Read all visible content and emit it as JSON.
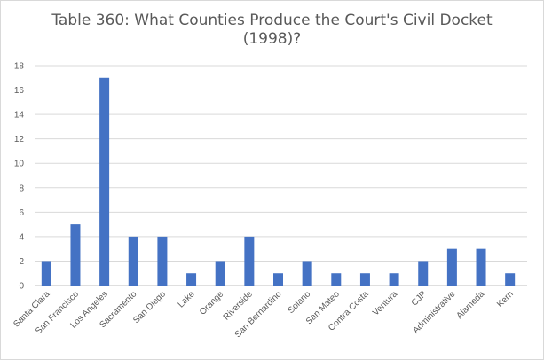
{
  "chart_data": {
    "type": "bar",
    "title_line1": "Table 360: What Counties Produce the Court's Civil Docket",
    "title_line2": "(1998)?",
    "categories": [
      "Santa Clara",
      "San Francisco",
      "Los Angeles",
      "Sacramento",
      "San Diego",
      "Lake",
      "Orange",
      "Riverside",
      "San Bernardino",
      "Solano",
      "San Mateo",
      "Contra Costa",
      "Ventura",
      "CJP",
      "Administrative",
      "Alameda",
      "Kern"
    ],
    "values": [
      2,
      5,
      17,
      4,
      4,
      1,
      2,
      4,
      1,
      2,
      1,
      1,
      1,
      2,
      3,
      3,
      1
    ],
    "xlabel": "",
    "ylabel": "",
    "ylim": [
      0,
      18
    ],
    "yticks": [
      0,
      2,
      4,
      6,
      8,
      10,
      12,
      14,
      16,
      18
    ],
    "grid": true,
    "legend": "none",
    "bar_color": "#4472c4",
    "grid_color": "#d9d9d9"
  }
}
